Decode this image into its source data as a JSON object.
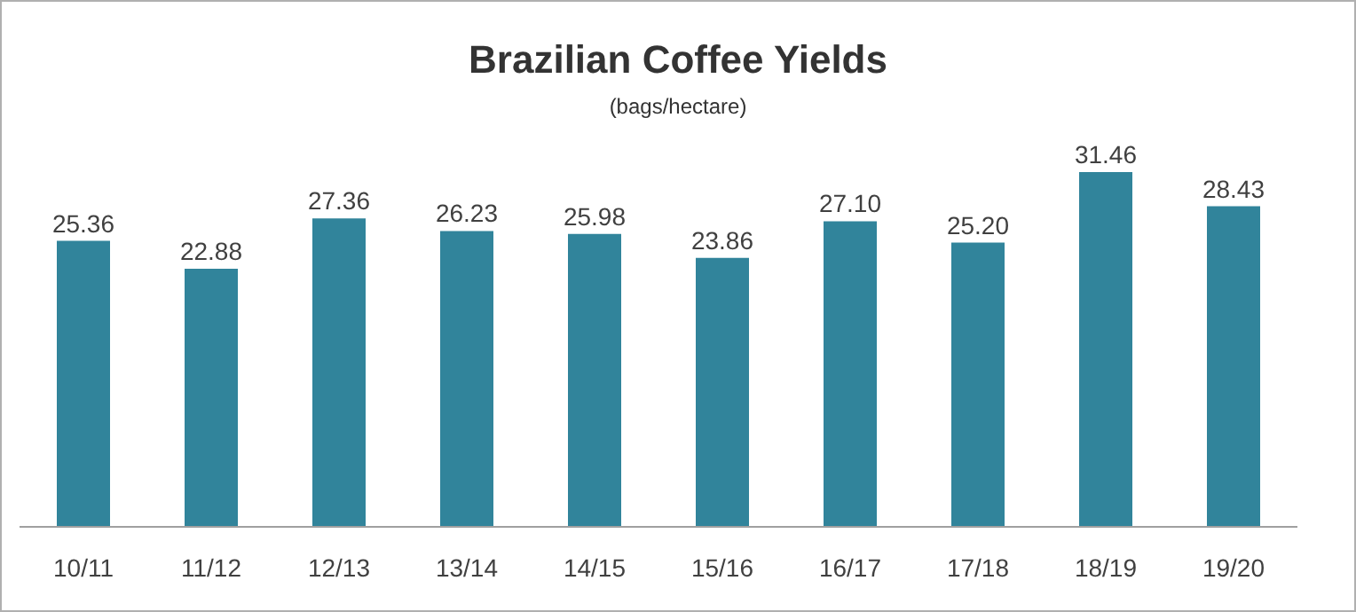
{
  "chart_data": {
    "type": "bar",
    "title": "Brazilian Coffee Yields",
    "subtitle": "(bags/hectare)",
    "categories": [
      "10/11",
      "11/12",
      "12/13",
      "13/14",
      "14/15",
      "15/16",
      "16/17",
      "17/18",
      "18/19",
      "19/20"
    ],
    "values": [
      25.36,
      22.88,
      27.36,
      26.23,
      25.98,
      23.86,
      27.1,
      25.2,
      31.46,
      28.43
    ],
    "value_labels": [
      "25.36",
      "22.88",
      "27.36",
      "26.23",
      "25.98",
      "23.86",
      "27.10",
      "25.20",
      "31.46",
      "28.43"
    ],
    "color": "#31849b",
    "grid": false,
    "legend": false
  }
}
